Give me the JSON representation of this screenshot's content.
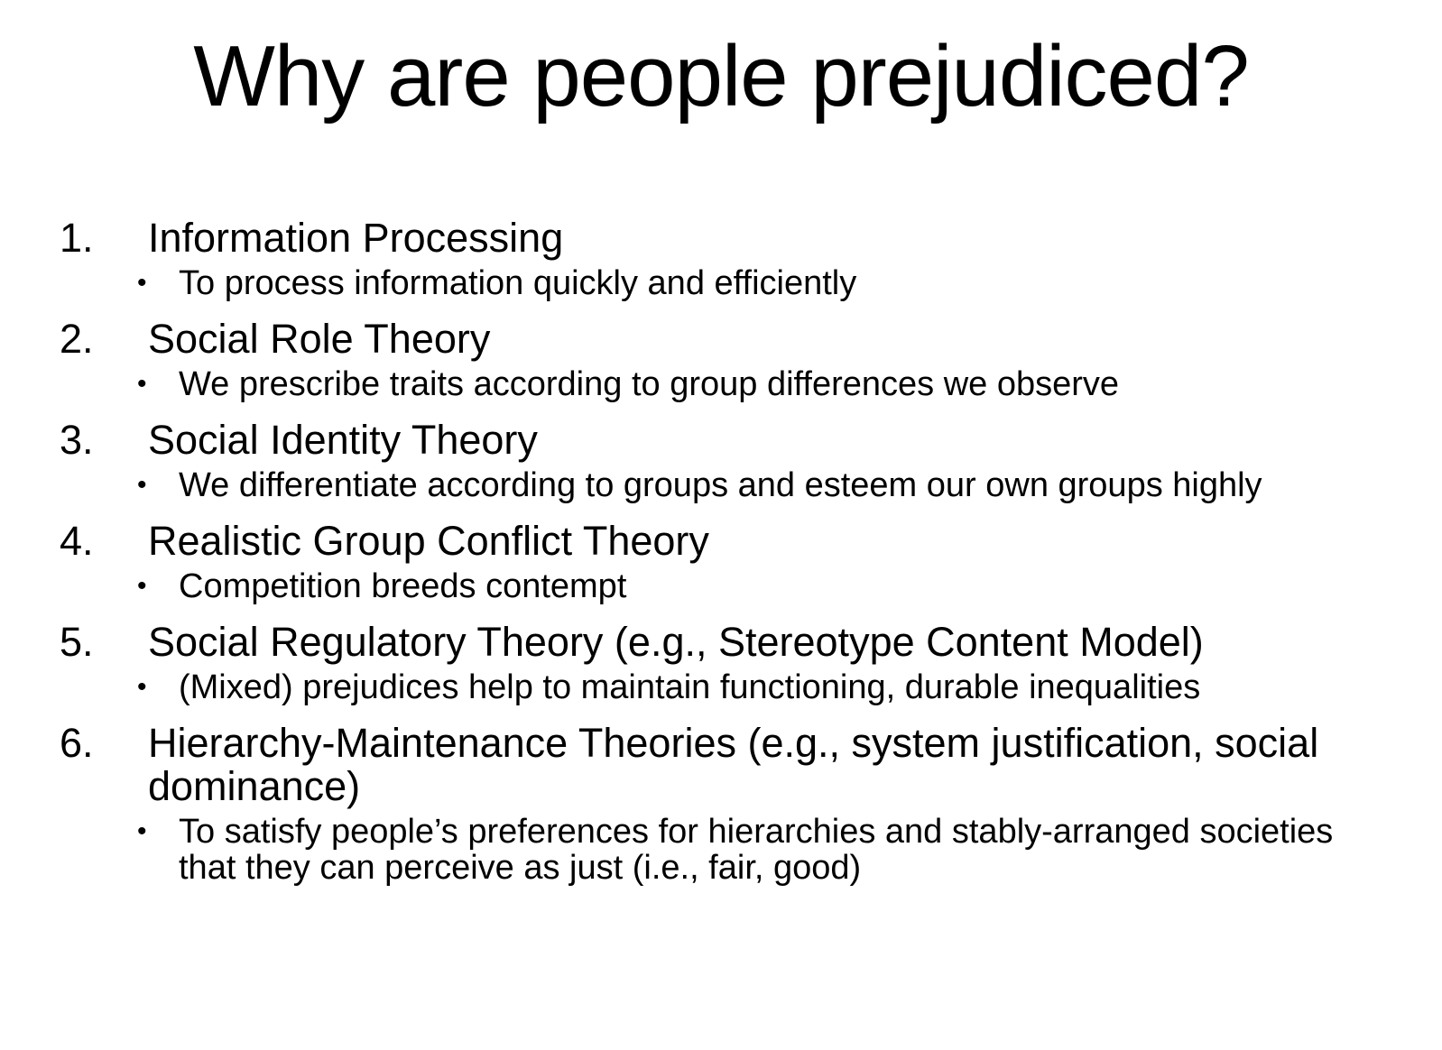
{
  "slide": {
    "title": "Why are people prejudiced?",
    "items": [
      {
        "number": "1.",
        "title": "Information Processing",
        "bullet": "To process information quickly and efficiently"
      },
      {
        "number": "2.",
        "title": "Social Role Theory",
        "bullet": "We prescribe traits according to group differences we observe"
      },
      {
        "number": "3.",
        "title": "Social Identity Theory",
        "bullet": "We differentiate according to groups and esteem our own groups highly"
      },
      {
        "number": "4.",
        "title": "Realistic Group Conflict Theory",
        "bullet": "Competition breeds contempt"
      },
      {
        "number": "5.",
        "title": "Social Regulatory Theory (e.g., Stereotype Content Model)",
        "bullet": "(Mixed) prejudices help to maintain functioning, durable inequalities"
      },
      {
        "number": "6.",
        "title": "Hierarchy-Maintenance Theories (e.g., system justification, social dominance)",
        "bullet": "To satisfy people’s preferences for hierarchies and stably-arranged societies that they can perceive as just (i.e., fair, good)"
      }
    ],
    "bullet_symbol": "•"
  }
}
